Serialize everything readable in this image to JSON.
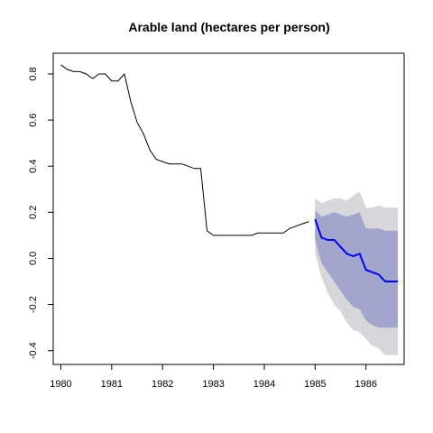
{
  "chart_data": {
    "type": "line",
    "title": "Arable land (hectares per person)",
    "xlabel": "",
    "ylabel": "",
    "xlim": [
      1979.85,
      1986.75
    ],
    "ylim": [
      -0.46,
      0.89
    ],
    "grid": false,
    "x_ticks": [
      1980,
      1981,
      1982,
      1983,
      1984,
      1985,
      1986
    ],
    "x_tick_labels": [
      "1980",
      "1981",
      "1982",
      "1983",
      "1984",
      "1985",
      "1986"
    ],
    "y_ticks": [
      -0.4,
      -0.2,
      0.0,
      0.2,
      0.4,
      0.6,
      0.8
    ],
    "y_tick_labels": [
      "-0.4",
      "-0.2",
      "0.0",
      "0.2",
      "0.4",
      "0.6",
      "0.8"
    ],
    "colors": {
      "history": "#000000",
      "forecast": "#0000ff",
      "band80": "#a2a5cc",
      "band95": "#d6d6db"
    },
    "history": {
      "x": [
        1980.0,
        1980.125,
        1980.25,
        1980.375,
        1980.5,
        1980.625,
        1980.75,
        1980.875,
        1981.0,
        1981.125,
        1981.25,
        1981.375,
        1981.5,
        1981.625,
        1981.75,
        1981.875,
        1982.0,
        1982.125,
        1982.25,
        1982.375,
        1982.5,
        1982.625,
        1982.75,
        1982.875,
        1983.0,
        1983.125,
        1983.25,
        1983.375,
        1983.5,
        1983.625,
        1983.75,
        1983.875,
        1984.0,
        1984.125,
        1984.25,
        1984.375,
        1984.5,
        1984.625,
        1984.75,
        1984.875
      ],
      "y": [
        0.84,
        0.82,
        0.81,
        0.81,
        0.8,
        0.78,
        0.8,
        0.8,
        0.77,
        0.77,
        0.8,
        0.68,
        0.59,
        0.54,
        0.47,
        0.43,
        0.42,
        0.41,
        0.41,
        0.41,
        0.4,
        0.39,
        0.39,
        0.12,
        0.1,
        0.1,
        0.1,
        0.1,
        0.1,
        0.1,
        0.1,
        0.11,
        0.11,
        0.11,
        0.11,
        0.11,
        0.13,
        0.14,
        0.15,
        0.16
      ]
    },
    "forecast": {
      "x": [
        1985.0,
        1985.125,
        1985.25,
        1985.375,
        1985.5,
        1985.625,
        1985.75,
        1985.875,
        1986.0,
        1986.125,
        1986.25,
        1986.375,
        1986.5,
        1986.625
      ],
      "mean": [
        0.17,
        0.09,
        0.08,
        0.08,
        0.05,
        0.02,
        0.01,
        0.02,
        -0.05,
        -0.06,
        -0.07,
        -0.1,
        -0.1,
        -0.1
      ],
      "lo80": [
        0.08,
        -0.02,
        -0.06,
        -0.1,
        -0.14,
        -0.18,
        -0.21,
        -0.22,
        -0.27,
        -0.29,
        -0.3,
        -0.3,
        -0.3,
        -0.3
      ],
      "hi80": [
        0.21,
        0.18,
        0.19,
        0.2,
        0.19,
        0.18,
        0.19,
        0.2,
        0.13,
        0.13,
        0.13,
        0.12,
        0.12,
        0.12
      ],
      "lo95": [
        0.02,
        -0.08,
        -0.15,
        -0.2,
        -0.23,
        -0.28,
        -0.31,
        -0.32,
        -0.35,
        -0.38,
        -0.39,
        -0.42,
        -0.42,
        -0.42
      ],
      "hi95": [
        0.26,
        0.24,
        0.25,
        0.26,
        0.26,
        0.25,
        0.27,
        0.29,
        0.22,
        0.22,
        0.23,
        0.22,
        0.22,
        0.22
      ]
    }
  }
}
